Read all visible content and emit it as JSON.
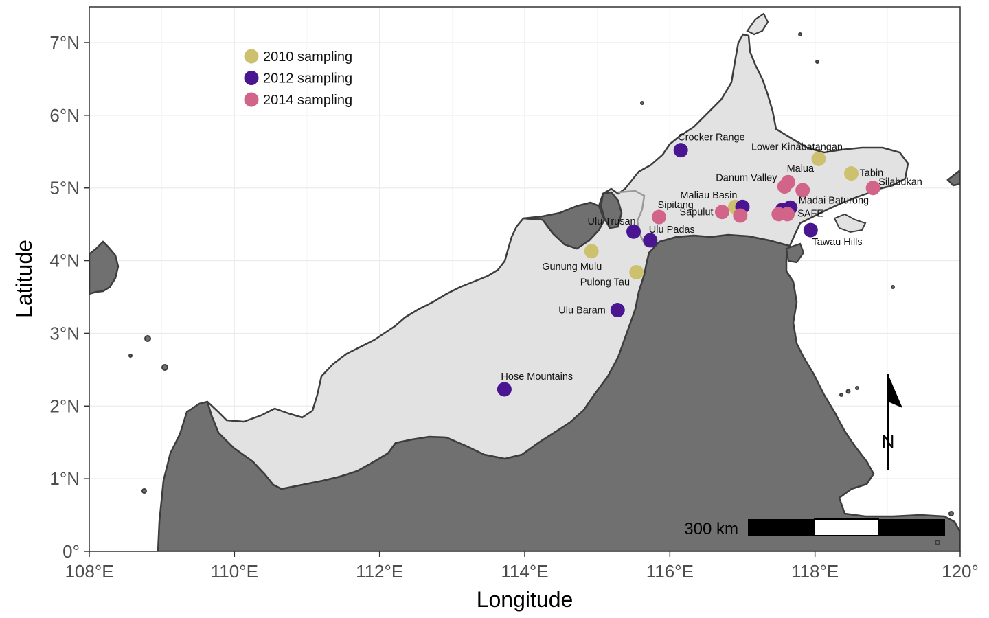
{
  "axes": {
    "xlabel": "Longitude",
    "ylabel": "Latitude",
    "x_ticks": [
      {
        "value": 108,
        "label": "108°E"
      },
      {
        "value": 110,
        "label": "110°E"
      },
      {
        "value": 112,
        "label": "112°E"
      },
      {
        "value": 114,
        "label": "114°E"
      },
      {
        "value": 116,
        "label": "116°E"
      },
      {
        "value": 118,
        "label": "118°E"
      },
      {
        "value": 120,
        "label": "120°"
      }
    ],
    "y_ticks": [
      {
        "value": 0,
        "label": "0°"
      },
      {
        "value": 1,
        "label": "1°N"
      },
      {
        "value": 2,
        "label": "2°N"
      },
      {
        "value": 3,
        "label": "3°N"
      },
      {
        "value": 4,
        "label": "4°N"
      },
      {
        "value": 5,
        "label": "5°N"
      },
      {
        "value": 6,
        "label": "6°N"
      },
      {
        "value": 7,
        "label": "7°N"
      }
    ],
    "xlim": [
      108,
      120
    ],
    "ylim": [
      0,
      7.5
    ],
    "grid": true
  },
  "legend": [
    {
      "key": "2010",
      "label": "2010 sampling",
      "color": "#cdc170"
    },
    {
      "key": "2012",
      "label": "2012 sampling",
      "color": "#4a1591"
    },
    {
      "key": "2014",
      "label": "2014 sampling",
      "color": "#d2648a"
    }
  ],
  "colors": {
    "study_land": "#e2e2e2",
    "other_land": "#707070",
    "outline": "#3d3d3d",
    "background": "#ffffff",
    "grid": "#ebebeb"
  },
  "sites": [
    {
      "name": "Crocker Range",
      "lon": 116.15,
      "lat": 5.52,
      "year": "2012"
    },
    {
      "name": "Lower Kinabatangan",
      "lon": 118.05,
      "lat": 5.4,
      "year": "2010"
    },
    {
      "name": "Tabin",
      "lon": 118.5,
      "lat": 5.2,
      "year": "2010"
    },
    {
      "name": "Malua",
      "lon": 117.63,
      "lat": 5.08,
      "year": "2014"
    },
    {
      "name": "Danum Valley",
      "lon": 117.58,
      "lat": 5.02,
      "year": "2014"
    },
    {
      "name": "",
      "lon": 117.83,
      "lat": 4.97,
      "year": "2014"
    },
    {
      "name": "Silabukan",
      "lon": 118.8,
      "lat": 5.0,
      "year": "2014"
    },
    {
      "name": "Maliau Basin",
      "lon": 116.9,
      "lat": 4.74,
      "year": "2010"
    },
    {
      "name": "",
      "lon": 117.0,
      "lat": 4.74,
      "year": "2012"
    },
    {
      "name": "Madai Baturong",
      "lon": 117.66,
      "lat": 4.73,
      "year": "2012"
    },
    {
      "name": "SAFE",
      "lon": 117.55,
      "lat": 4.7,
      "year": "2012"
    },
    {
      "name": "",
      "lon": 117.5,
      "lat": 4.64,
      "year": "2014"
    },
    {
      "name": "",
      "lon": 117.62,
      "lat": 4.64,
      "year": "2014"
    },
    {
      "name": "Sipitang",
      "lon": 115.85,
      "lat": 4.6,
      "year": "2014"
    },
    {
      "name": "Sapulut",
      "lon": 116.72,
      "lat": 4.67,
      "year": "2014"
    },
    {
      "name": "",
      "lon": 116.97,
      "lat": 4.62,
      "year": "2014"
    },
    {
      "name": "Tawau Hills",
      "lon": 117.94,
      "lat": 4.42,
      "year": "2012"
    },
    {
      "name": "Ulu Trusan",
      "lon": 115.5,
      "lat": 4.4,
      "year": "2012"
    },
    {
      "name": "Ulu Padas",
      "lon": 115.73,
      "lat": 4.28,
      "year": "2012"
    },
    {
      "name": "Gunung Mulu",
      "lon": 114.92,
      "lat": 4.13,
      "year": "2010"
    },
    {
      "name": "Pulong Tau",
      "lon": 115.54,
      "lat": 3.84,
      "year": "2010"
    },
    {
      "name": "Ulu Baram",
      "lon": 115.28,
      "lat": 3.32,
      "year": "2012"
    },
    {
      "name": "Hose Mountains",
      "lon": 113.72,
      "lat": 2.23,
      "year": "2012"
    }
  ],
  "scale_bar": {
    "label": "300 km"
  },
  "north_arrow": {
    "label": "N"
  }
}
